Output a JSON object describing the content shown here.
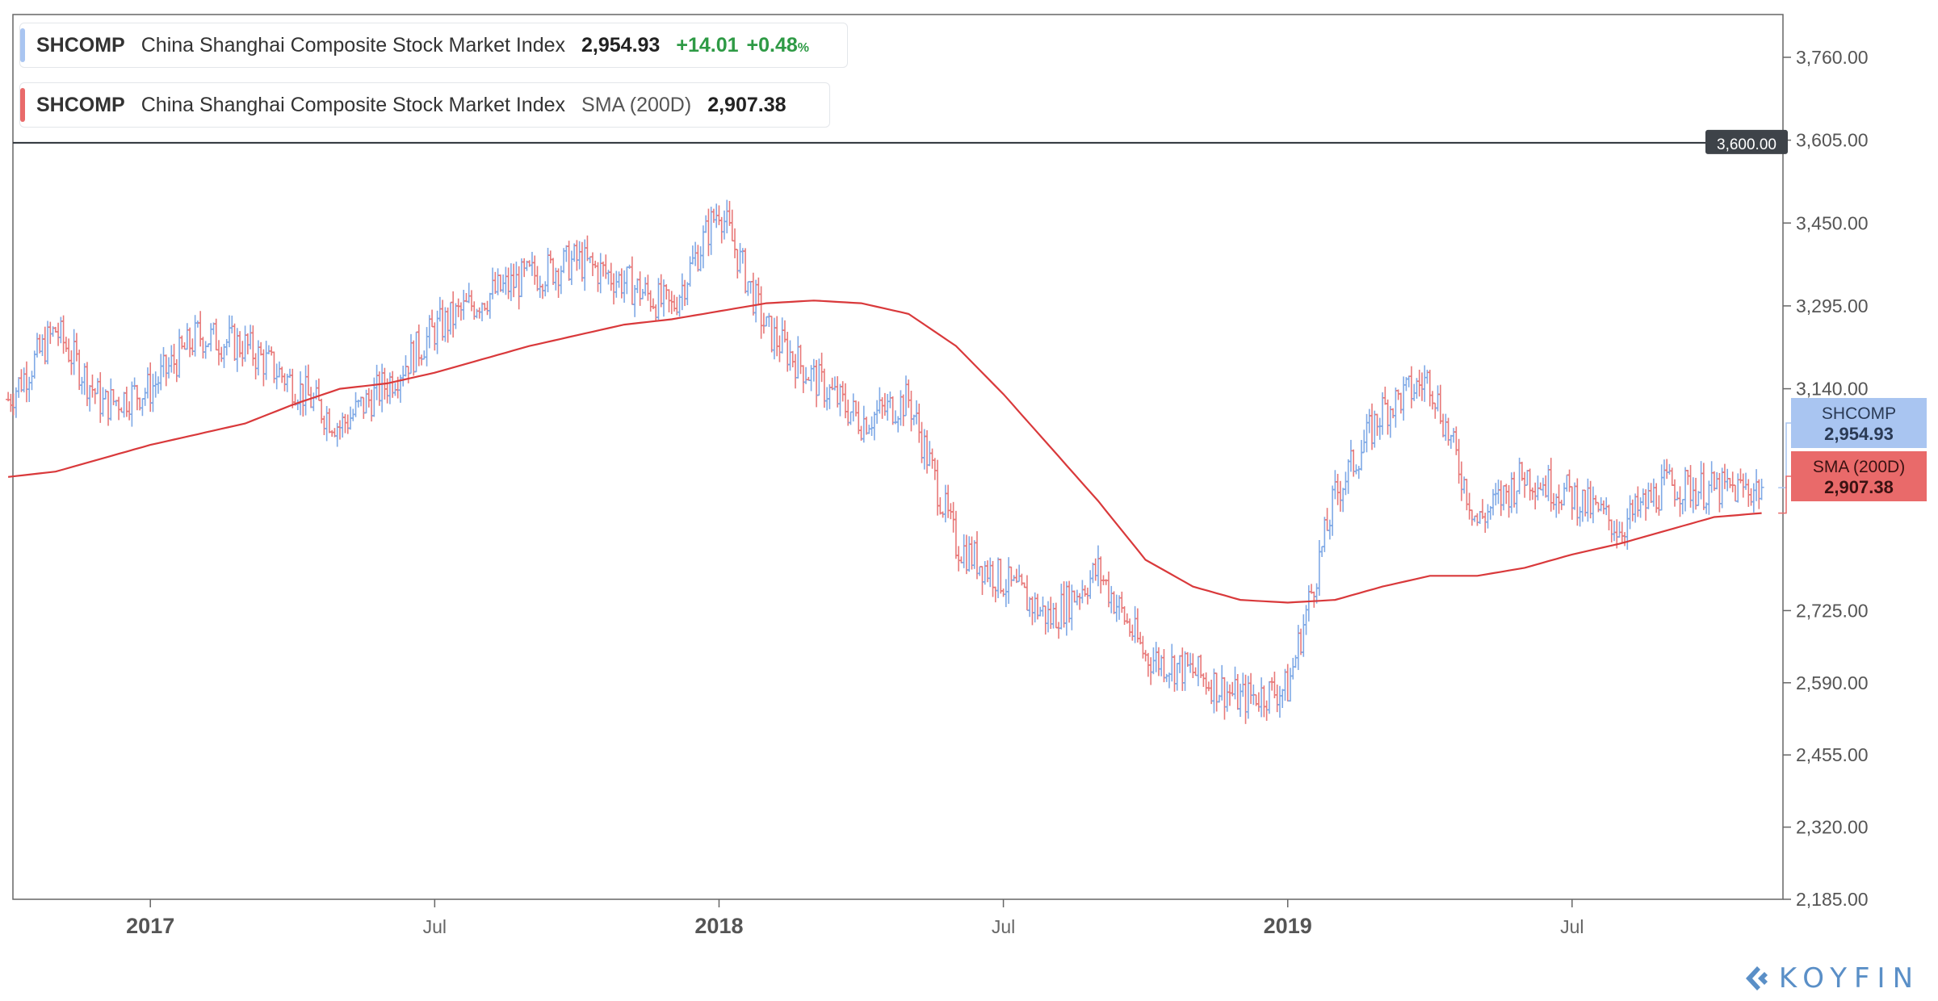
{
  "legend": {
    "primary": {
      "ticker": "SHCOMP",
      "name": "China Shanghai Composite Stock Market Index",
      "value": "2,954.93",
      "change": "+14.01",
      "change_pct": "+0.48",
      "pct_unit": "%"
    },
    "study": {
      "ticker": "SHCOMP",
      "name": "China Shanghai Composite Stock Market Index",
      "study": "SMA (200D)",
      "value": "2,907.38"
    }
  },
  "right_badges": {
    "price": {
      "label": "SHCOMP",
      "value": "2,954.93"
    },
    "sma": {
      "label": "SMA (200D)",
      "value": "2,907.38"
    },
    "hline": "3,600.00"
  },
  "logo": {
    "text": "KOYFIN"
  },
  "colors": {
    "up": "#7fa9e6",
    "down": "#e87979",
    "sma": "#d9393b",
    "price_badge": "#a9c5f1",
    "sma_badge": "#e96a6a",
    "hline_badge": "#3e4349",
    "axis": "#777777"
  },
  "chart_data": {
    "type": "line",
    "title": "",
    "ylim": [
      2185,
      3840
    ],
    "y_ticks": [
      "3,760.00",
      "3,605.00",
      "3,450.00",
      "3,295.00",
      "3,140.00",
      "2,725.00",
      "2,590.00",
      "2,455.00",
      "2,320.00",
      "2,185.00"
    ],
    "y_tick_values": [
      3760,
      3605,
      3450,
      3295,
      3140,
      2725,
      2590,
      2455,
      2320,
      2185
    ],
    "x_ticks": [
      {
        "label": "2017",
        "date": "2017-01",
        "major": true
      },
      {
        "label": "Jul",
        "date": "2017-07",
        "major": false
      },
      {
        "label": "2018",
        "date": "2018-01",
        "major": true
      },
      {
        "label": "Jul",
        "date": "2018-07",
        "major": false
      },
      {
        "label": "2019",
        "date": "2019-01",
        "major": true
      },
      {
        "label": "Jul",
        "date": "2019-07",
        "major": false
      }
    ],
    "horizontal_line": 3600,
    "series": [
      {
        "style": "ohlc-bars",
        "x": [
          "2016-10",
          "2016-11",
          "2016-12",
          "2017-01",
          "2017-02",
          "2017-03",
          "2017-04",
          "2017-05",
          "2017-06",
          "2017-07",
          "2017-08",
          "2017-09",
          "2017-10",
          "2017-11",
          "2017-12",
          "2018-01",
          "2018-02",
          "2018-03",
          "2018-04",
          "2018-05",
          "2018-06",
          "2018-07",
          "2018-08",
          "2018-09",
          "2018-10",
          "2018-11",
          "2018-12",
          "2019-01",
          "2019-02",
          "2019-03",
          "2019-04",
          "2019-05",
          "2019-06",
          "2019-07",
          "2019-08",
          "2019-09",
          "2019-10",
          "2019-11"
        ],
        "values": [
          3120,
          3250,
          3110,
          3140,
          3240,
          3220,
          3150,
          3070,
          3150,
          3250,
          3310,
          3350,
          3380,
          3340,
          3290,
          3480,
          3250,
          3160,
          3080,
          3120,
          2850,
          2780,
          2710,
          2800,
          2640,
          2610,
          2560,
          2580,
          2940,
          3100,
          3160,
          2890,
          2980,
          2940,
          2880,
          2960,
          2950,
          2954.93
        ]
      },
      {
        "name": "SMA (200D)",
        "style": "line",
        "x": [
          "2016-10",
          "2016-11",
          "2016-12",
          "2017-01",
          "2017-02",
          "2017-03",
          "2017-04",
          "2017-05",
          "2017-06",
          "2017-07",
          "2017-08",
          "2017-09",
          "2017-10",
          "2017-11",
          "2017-12",
          "2018-01",
          "2018-02",
          "2018-03",
          "2018-04",
          "2018-05",
          "2018-06",
          "2018-07",
          "2018-08",
          "2018-09",
          "2018-10",
          "2018-11",
          "2018-12",
          "2019-01",
          "2019-02",
          "2019-03",
          "2019-04",
          "2019-05",
          "2019-06",
          "2019-07",
          "2019-08",
          "2019-09",
          "2019-10",
          "2019-11"
        ],
        "values": [
          2975,
          2985,
          3010,
          3035,
          3055,
          3075,
          3110,
          3140,
          3150,
          3170,
          3195,
          3220,
          3240,
          3260,
          3270,
          3285,
          3300,
          3305,
          3300,
          3280,
          3220,
          3130,
          3030,
          2930,
          2820,
          2770,
          2745,
          2740,
          2745,
          2770,
          2790,
          2790,
          2805,
          2830,
          2850,
          2875,
          2900,
          2907.38
        ]
      }
    ]
  }
}
